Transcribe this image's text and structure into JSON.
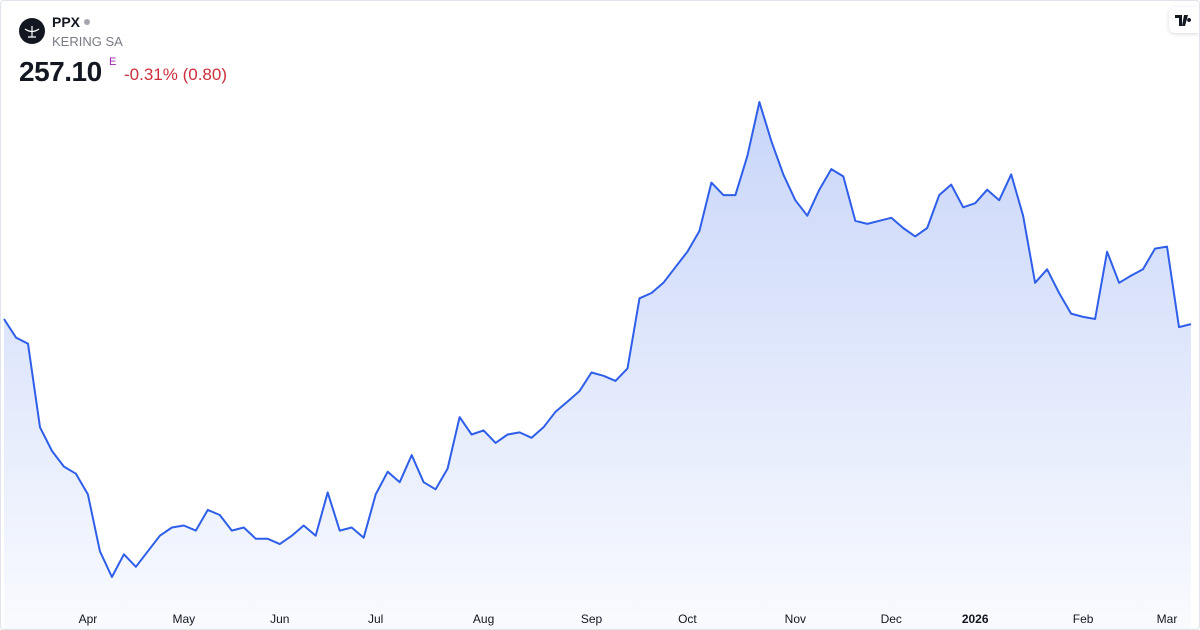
{
  "header": {
    "ticker": "PPX",
    "company": "KERING SA",
    "price": "257.10",
    "flag": "E",
    "change": "-0.31% (0.80)"
  },
  "chart_data": {
    "type": "area",
    "color": "#2f5fe8",
    "categories": [
      null,
      null,
      null,
      null,
      null,
      null,
      null,
      "Apr",
      null,
      null,
      null,
      null,
      null,
      null,
      null,
      "May",
      null,
      null,
      null,
      null,
      null,
      null,
      null,
      "Jun",
      null,
      null,
      null,
      null,
      null,
      null,
      null,
      "Jul",
      null,
      null,
      null,
      null,
      null,
      null,
      null,
      null,
      "Aug",
      null,
      null,
      null,
      null,
      null,
      null,
      null,
      null,
      "Sep",
      null,
      null,
      null,
      null,
      null,
      null,
      null,
      "Oct",
      null,
      null,
      null,
      null,
      null,
      null,
      null,
      null,
      "Nov",
      null,
      null,
      null,
      null,
      null,
      null,
      null,
      "Dec",
      null,
      null,
      null,
      null,
      null,
      null,
      "2026",
      null,
      null,
      null,
      null,
      null,
      null,
      null,
      null,
      "Feb",
      null,
      null,
      null,
      null,
      null,
      null,
      "Mar",
      null,
      null
    ],
    "values": [
      259.1,
      251.8,
      249.4,
      216.6,
      207.3,
      201.2,
      198.4,
      190.3,
      168.0,
      157.9,
      166.8,
      161.9,
      168.0,
      174.1,
      177.3,
      178.1,
      176.1,
      184.2,
      182.2,
      176.1,
      177.3,
      172.9,
      172.9,
      170.8,
      174.1,
      178.1,
      174.1,
      191.1,
      176.1,
      177.3,
      173.3,
      190.3,
      199.2,
      195.1,
      205.7,
      195.1,
      192.3,
      200.4,
      220.6,
      213.8,
      215.4,
      210.5,
      213.8,
      214.6,
      212.5,
      216.6,
      222.7,
      226.7,
      230.8,
      238.1,
      236.8,
      234.8,
      239.7,
      267.2,
      269.3,
      273.3,
      279.4,
      285.5,
      293.6,
      312.6,
      307.7,
      307.7,
      323.1,
      344.2,
      328.8,
      315.8,
      305.7,
      299.6,
      309.8,
      317.9,
      315.0,
      297.6,
      296.4,
      297.6,
      298.8,
      294.8,
      291.5,
      294.8,
      307.7,
      311.8,
      302.9,
      304.5,
      309.8,
      305.7,
      315.8,
      299.6,
      273.3,
      278.6,
      269.3,
      261.2,
      259.9,
      259.1,
      285.5,
      273.3,
      276.1,
      278.6,
      286.7,
      287.5,
      255.9,
      257.1
    ]
  }
}
